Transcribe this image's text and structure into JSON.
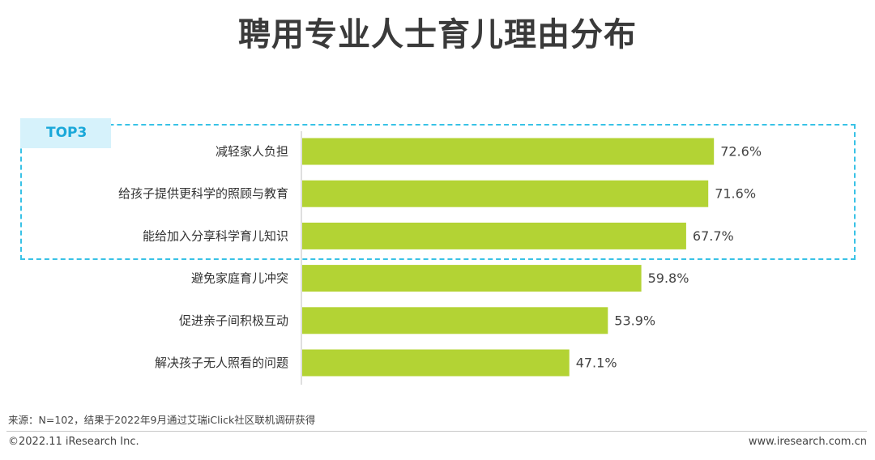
{
  "header": {
    "title": "聘用专业人士育儿理由分布"
  },
  "highlight": {
    "badge": "TOP3"
  },
  "chart_data": {
    "type": "bar",
    "orientation": "horizontal",
    "categories": [
      "减轻家人负担",
      "给孩子提供更科学的照顾与教育",
      "能给加入分享科学育儿知识",
      "避免家庭育儿冲突",
      "促进亲子间积极互动",
      "解决孩子无人照看的问题"
    ],
    "values": [
      72.6,
      71.6,
      67.7,
      59.8,
      53.9,
      47.1
    ],
    "value_labels": [
      "72.6%",
      "71.6%",
      "67.7%",
      "59.8%",
      "53.9%",
      "47.1%"
    ],
    "unit": "%",
    "xlim": [
      0,
      100
    ],
    "bar_color": "#b3d334",
    "grid": false,
    "legend": "none"
  },
  "footer": {
    "source": "来源：N=102，结果于2022年9月通过艾瑞iClick社区联机调研获得",
    "copyright": "©2022.11 iResearch Inc.",
    "website": "www.iresearch.com.cn"
  }
}
